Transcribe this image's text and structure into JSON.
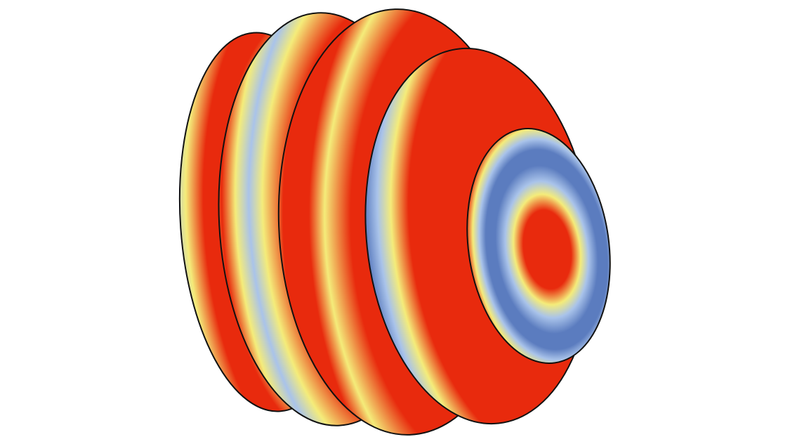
{
  "figure": {
    "subject": "stacked-disk-surface-plot",
    "palette": {
      "background": "#ffffff",
      "outline": "#111111",
      "low": "#5b7cbf",
      "mid_low": "#a9c3ea",
      "mid": "#f4ec7a",
      "high": "#e82a0d"
    },
    "disk_count": 5
  }
}
